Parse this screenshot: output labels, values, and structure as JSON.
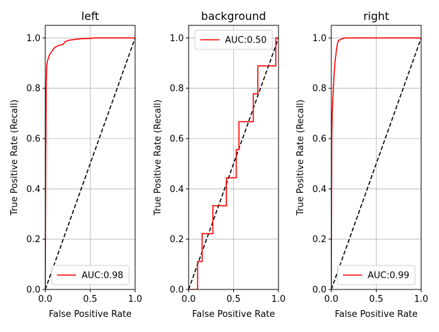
{
  "chart_data": [
    {
      "type": "line",
      "title": "left",
      "xlabel": "False Positive Rate",
      "ylabel": "True Positive Rate (Recall)",
      "xlim": [
        0,
        1.0
      ],
      "ylim": [
        0,
        1.05
      ],
      "x_ticks": [
        "0.0",
        "0.5",
        "1.0"
      ],
      "y_ticks": [
        "0.0",
        "0.2",
        "0.4",
        "0.6",
        "0.8",
        "1.0"
      ],
      "grid": true,
      "legend_position": "lower-right",
      "series": [
        {
          "name": "AUC:0.98",
          "color": "#ff0000",
          "x": [
            0,
            0.005,
            0.01,
            0.015,
            0.02,
            0.03,
            0.04,
            0.05,
            0.06,
            0.08,
            0.1,
            0.12,
            0.15,
            0.2,
            0.22,
            0.25,
            0.3,
            0.35,
            0.4,
            0.5,
            0.55,
            0.7,
            0.85,
            1.0
          ],
          "y": [
            0,
            0.5,
            0.8,
            0.88,
            0.9,
            0.915,
            0.925,
            0.935,
            0.94,
            0.95,
            0.96,
            0.965,
            0.97,
            0.975,
            0.985,
            0.99,
            0.993,
            0.995,
            0.997,
            0.998,
            1.0,
            1.0,
            1.0,
            1.0
          ]
        }
      ],
      "baseline": {
        "color": "#000000",
        "style": "dashed",
        "x": [
          0,
          1
        ],
        "y": [
          0,
          1
        ]
      }
    },
    {
      "type": "line",
      "title": "background",
      "xlabel": "False Positive Rate",
      "ylabel": "True Positive Rate (Recall)",
      "xlim": [
        0,
        1.0
      ],
      "ylim": [
        0,
        1.05
      ],
      "x_ticks": [
        "0.0",
        "0.5",
        "1.0"
      ],
      "y_ticks": [
        "0.0",
        "0.2",
        "0.4",
        "0.6",
        "0.8",
        "1.0"
      ],
      "grid": true,
      "legend_position": "upper-left",
      "series": [
        {
          "name": "AUC:0.50",
          "color": "#ff0000",
          "x": [
            0,
            0.1,
            0.1,
            0.15,
            0.15,
            0.27,
            0.27,
            0.42,
            0.42,
            0.53,
            0.53,
            0.56,
            0.56,
            0.72,
            0.72,
            0.77,
            0.77,
            0.97,
            0.97,
            1.0
          ],
          "y": [
            0,
            0,
            0.111,
            0.111,
            0.222,
            0.222,
            0.333,
            0.333,
            0.444,
            0.444,
            0.556,
            0.556,
            0.667,
            0.667,
            0.778,
            0.778,
            0.889,
            0.889,
            1.0,
            1.0
          ]
        }
      ],
      "baseline": {
        "color": "#000000",
        "style": "dashed",
        "x": [
          0,
          1
        ],
        "y": [
          0,
          1
        ]
      }
    },
    {
      "type": "line",
      "title": "right",
      "xlabel": "False Positive Rate",
      "ylabel": "True Positive Rate (Recall)",
      "xlim": [
        0,
        1.0
      ],
      "ylim": [
        0,
        1.05
      ],
      "x_ticks": [
        "0.0",
        "0.5",
        "1.0"
      ],
      "y_ticks": [
        "0.0",
        "0.2",
        "0.4",
        "0.6",
        "0.8",
        "1.0"
      ],
      "grid": true,
      "legend_position": "lower-right",
      "series": [
        {
          "name": "AUC:0.99",
          "color": "#ff0000",
          "x": [
            0,
            0.005,
            0.01,
            0.02,
            0.03,
            0.04,
            0.05,
            0.06,
            0.07,
            0.08,
            0.1,
            0.12,
            0.15,
            0.2,
            0.3,
            0.5,
            1.0
          ],
          "y": [
            0,
            0.6,
            0.7,
            0.78,
            0.85,
            0.9,
            0.93,
            0.96,
            0.98,
            0.99,
            0.993,
            0.997,
            1.0,
            1.0,
            1.0,
            1.0,
            1.0
          ]
        }
      ],
      "baseline": {
        "color": "#000000",
        "style": "dashed",
        "x": [
          0,
          1
        ],
        "y": [
          0,
          1
        ]
      }
    }
  ]
}
